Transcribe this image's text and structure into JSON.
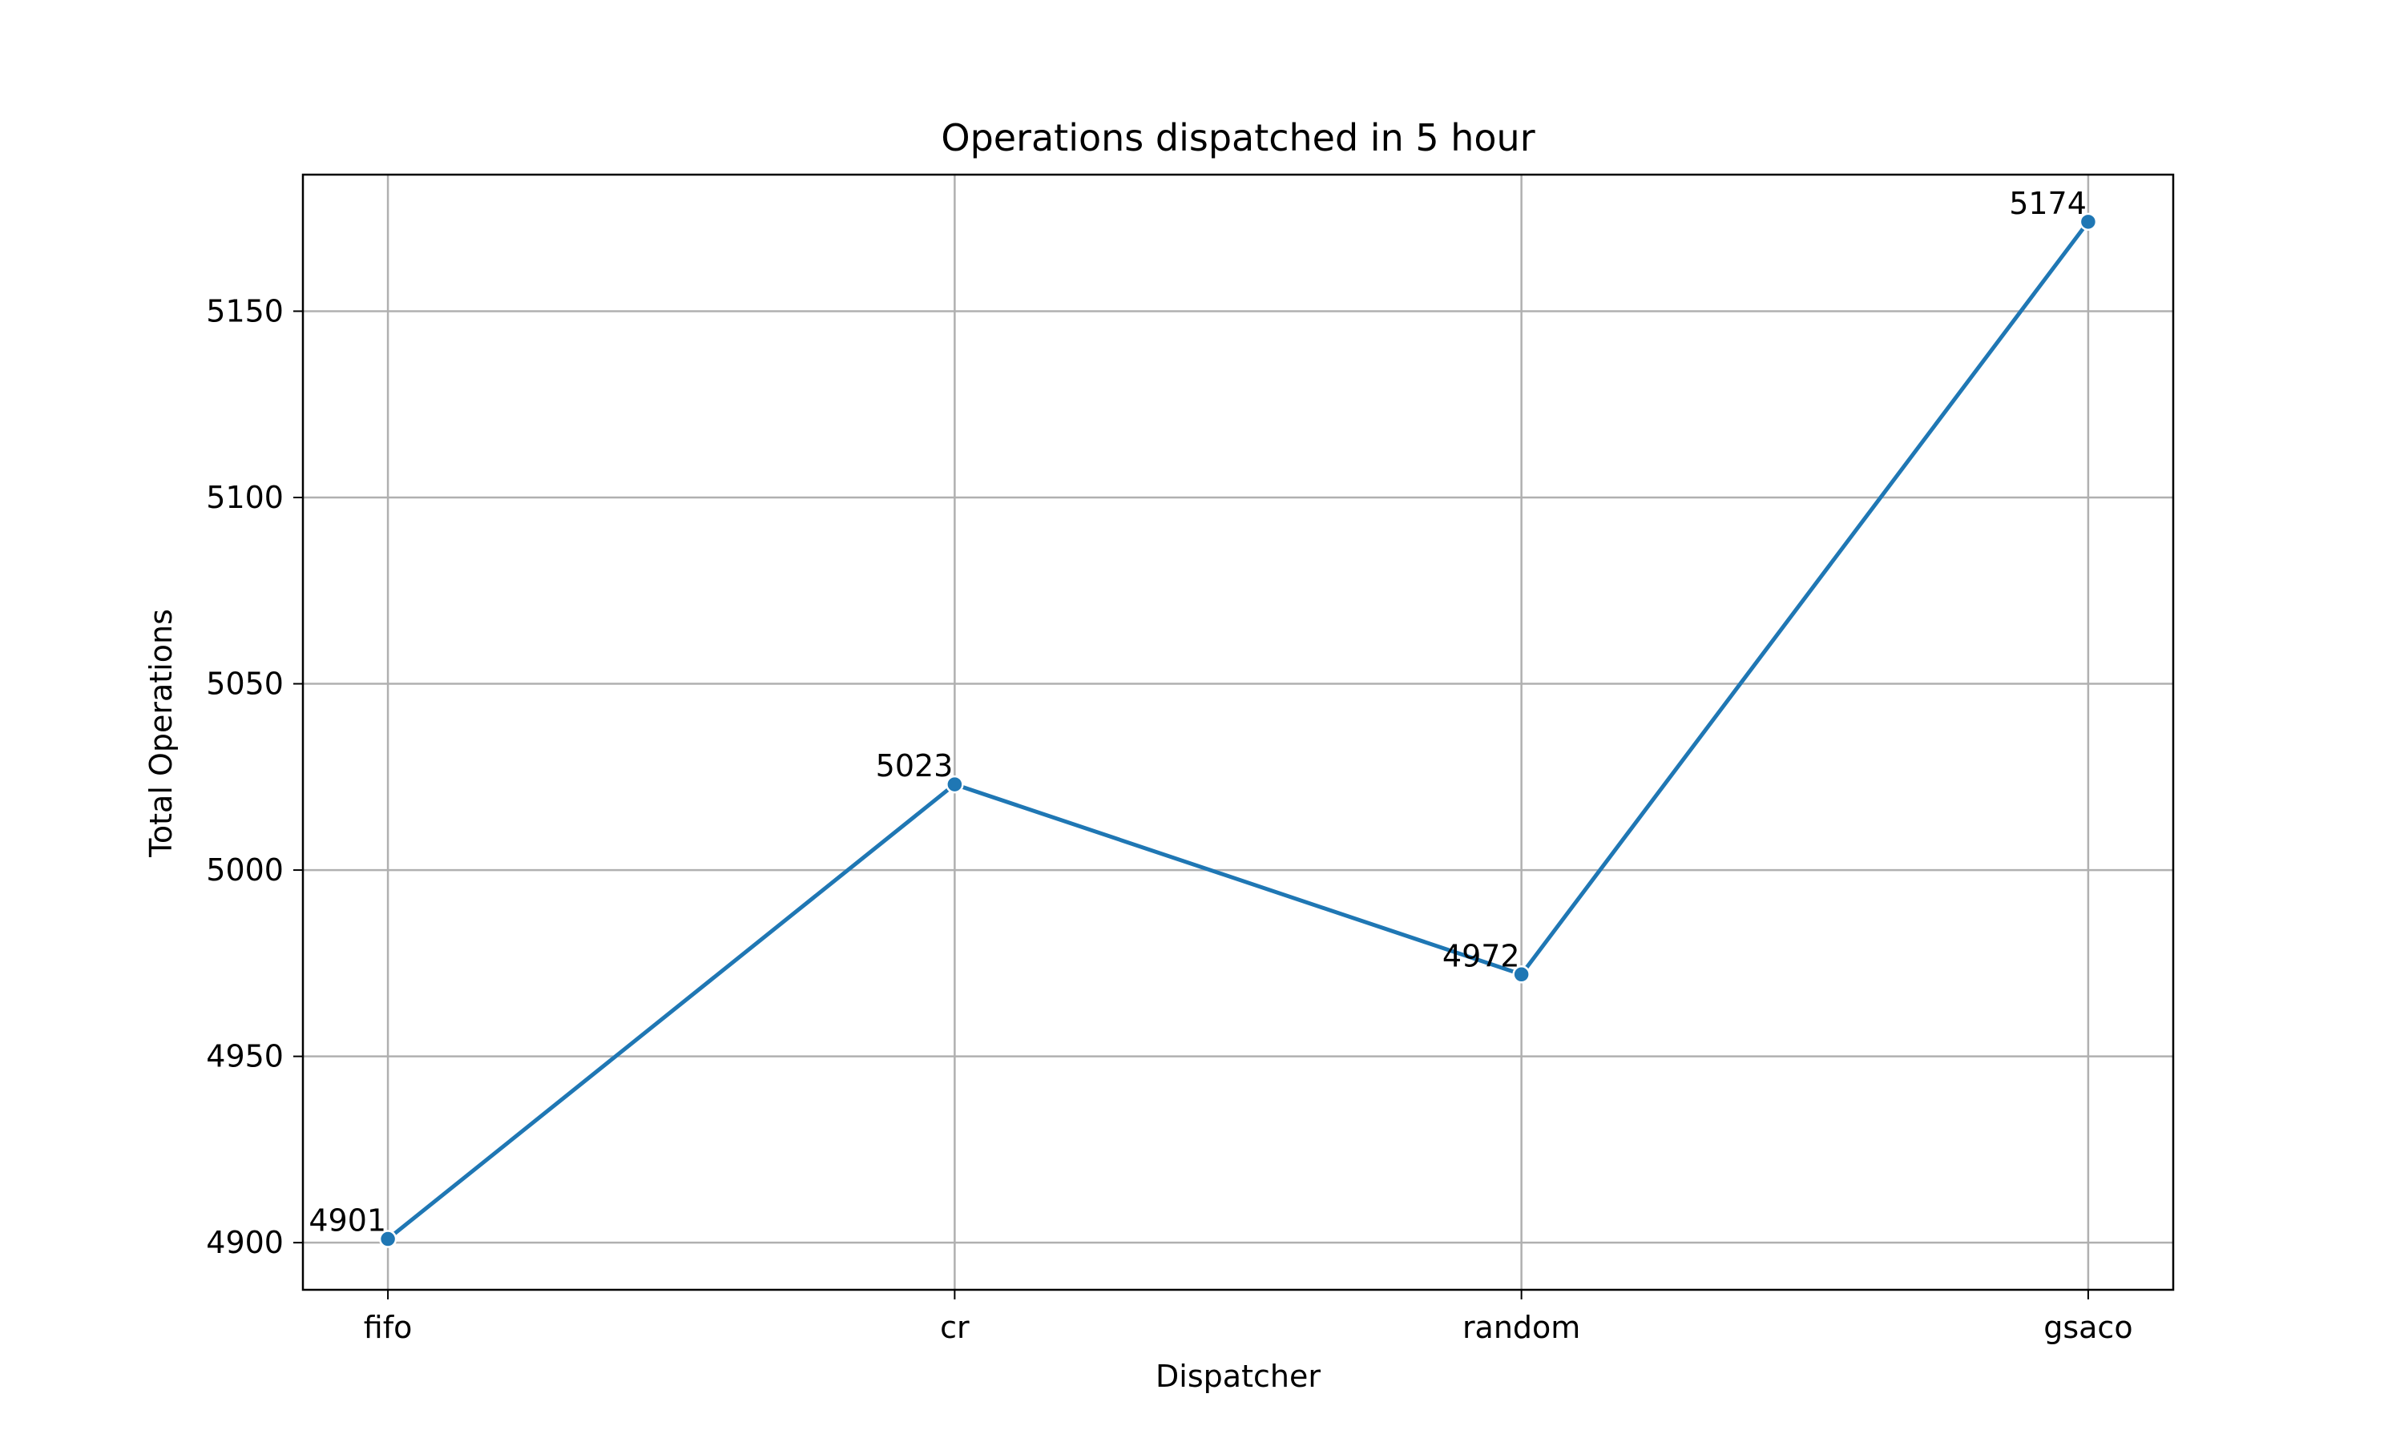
{
  "chart_data": {
    "type": "line",
    "title": "Operations dispatched in 5 hour",
    "xlabel": "Dispatcher",
    "ylabel": "Total Operations",
    "categories": [
      "fifo",
      "cr",
      "random",
      "gsaco"
    ],
    "series": [
      {
        "values": [
          4901,
          5023,
          4972,
          5174
        ],
        "color": "#1f77b4",
        "marker": "circle"
      }
    ],
    "data_labels": [
      "4901",
      "5023",
      "4972",
      "5174"
    ],
    "ylim": [
      4887.35,
      5186.65
    ],
    "yticks": [
      4900,
      4950,
      5000,
      5050,
      5100,
      5150
    ],
    "ytick_labels": [
      "4900",
      "4950",
      "5000",
      "5050",
      "5100",
      "5150"
    ],
    "grid": true,
    "legend": "none"
  }
}
